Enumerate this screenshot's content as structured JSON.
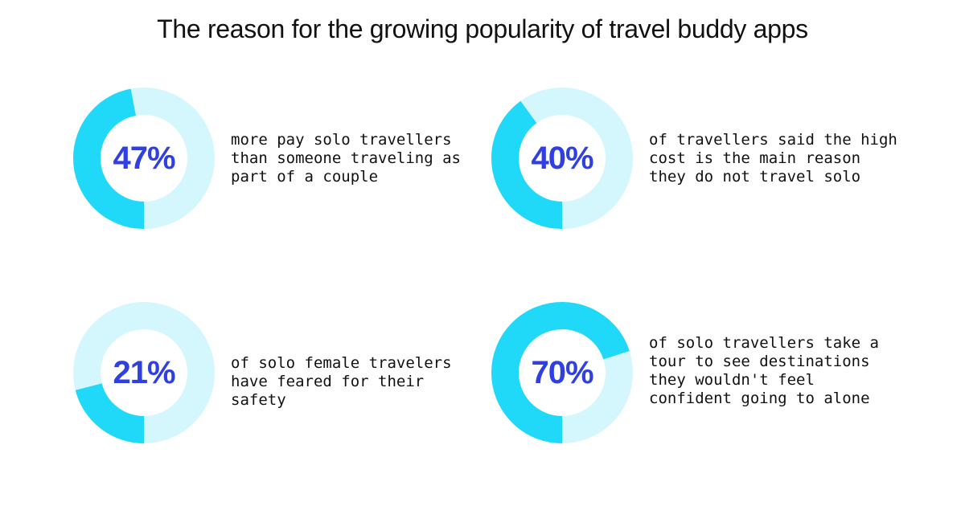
{
  "title": "The reason for the growing popularity of travel buddy apps",
  "colors": {
    "track": "#d4f6fd",
    "fill": "#20d8f7",
    "percent_text": "#2f3fe0"
  },
  "stats": [
    {
      "label": "47%",
      "value": 47,
      "start_angle_deg": 90,
      "description": "more pay solo travellers than someone traveling as part of a couple"
    },
    {
      "label": "40%",
      "value": 40,
      "start_angle_deg": 90,
      "description": "of travellers said the high cost is the main reason they do not travel solo"
    },
    {
      "label": "21%",
      "value": 21,
      "start_angle_deg": 90,
      "description": "of solo female travelers have feared for their safety"
    },
    {
      "label": "70%",
      "value": 70,
      "start_angle_deg": 90,
      "description": "of solo travellers take a tour to see destinations they wouldn't feel confident going to alone"
    }
  ],
  "chart_data": [
    {
      "type": "pie",
      "labels": [
        "47%"
      ],
      "values": [
        47
      ],
      "total": 100
    },
    {
      "type": "pie",
      "labels": [
        "40%"
      ],
      "values": [
        40
      ],
      "total": 100
    },
    {
      "type": "pie",
      "labels": [
        "21%"
      ],
      "values": [
        21
      ],
      "total": 100
    },
    {
      "type": "pie",
      "labels": [
        "70%"
      ],
      "values": [
        70
      ],
      "total": 100
    }
  ]
}
